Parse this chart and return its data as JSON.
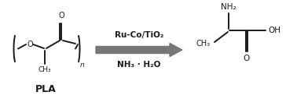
{
  "bg_color": "#ffffff",
  "line_color": "#1a1a1a",
  "arrow_color": "#777777",
  "label_above": "Ru-Co/TiO₂",
  "label_below": "NH₃ · H₂O",
  "pla_label": "PLA",
  "figsize": [
    3.78,
    1.27
  ],
  "dpi": 100
}
